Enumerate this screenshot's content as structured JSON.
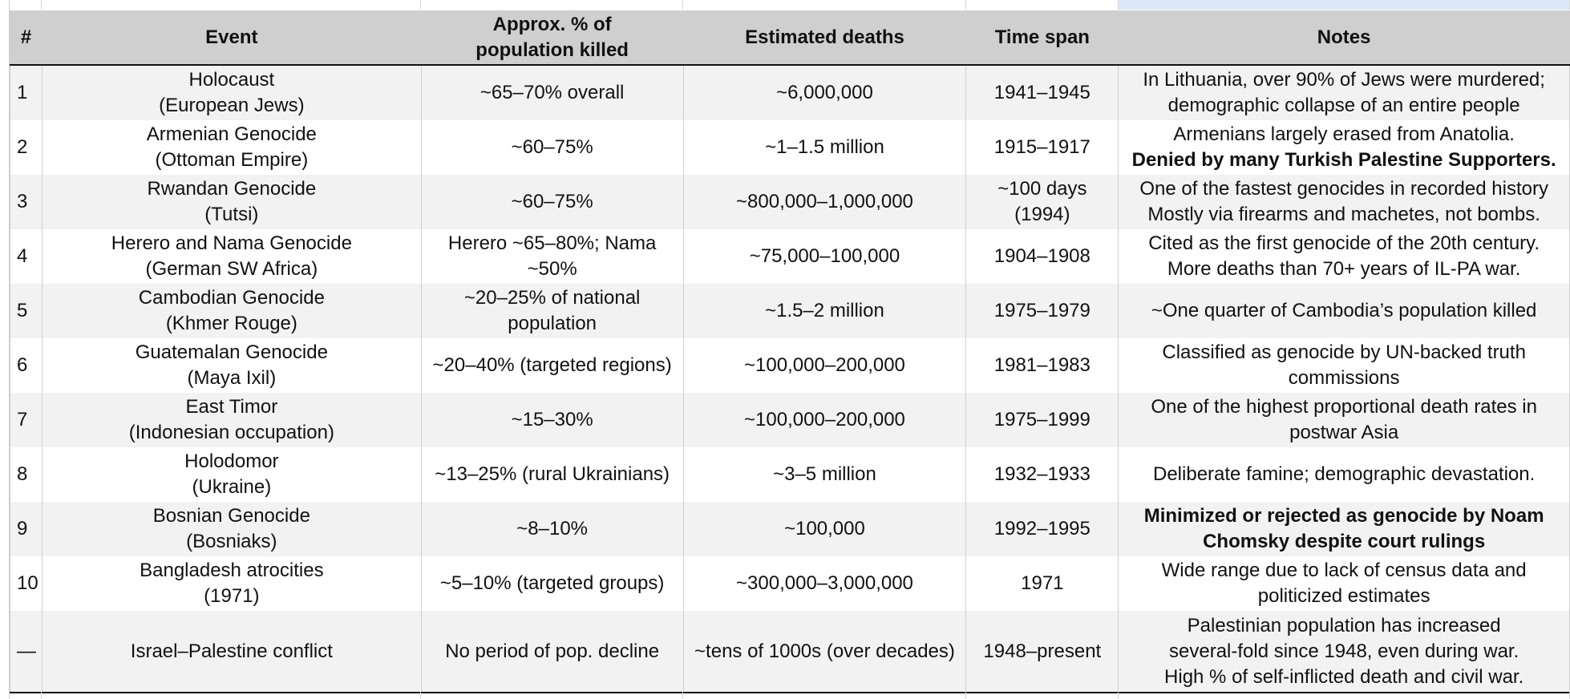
{
  "table": {
    "headers": {
      "num": "#",
      "event": "Event",
      "pct_line1": "Approx. % of",
      "pct_line2": "population killed",
      "deaths": "Estimated deaths",
      "span": "Time span",
      "notes": "Notes"
    },
    "rows": [
      {
        "num": "1",
        "event1": "Holocaust",
        "event2": "(European Jews)",
        "pct1": "~65–70% overall",
        "pct2": "",
        "deaths": "~6,000,000",
        "span1": "1941–1945",
        "span2": "",
        "notes1": "In Lithuania, over 90% of Jews were murdered;",
        "notes2": "demographic collapse of an entire people"
      },
      {
        "num": "2",
        "event1": "Armenian Genocide",
        "event2": "(Ottoman Empire)",
        "pct1": "~60–75%",
        "pct2": "",
        "deaths": "~1–1.5 million",
        "span1": "1915–1917",
        "span2": "",
        "notes1": "Armenians largely erased from Anatolia.",
        "notes2": "Denied by many Turkish Palestine Supporters."
      },
      {
        "num": "3",
        "event1": "Rwandan Genocide",
        "event2": "(Tutsi)",
        "pct1": "~60–75%",
        "pct2": "",
        "deaths": "~800,000–1,000,000",
        "span1": "~100 days",
        "span2": "(1994)",
        "notes1": "One of the fastest genocides in recorded history",
        "notes2": "Mostly via firearms and machetes, not bombs."
      },
      {
        "num": "4",
        "event1": "Herero and Nama Genocide",
        "event2": "(German SW Africa)",
        "pct1": "Herero ~65–80%; Nama",
        "pct2": "~50%",
        "deaths": "~75,000–100,000",
        "span1": "1904–1908",
        "span2": "",
        "notes1": "Cited as the first genocide of the 20th century.",
        "notes2": "More deaths than 70+ years of IL-PA war."
      },
      {
        "num": "5",
        "event1": "Cambodian Genocide",
        "event2": "(Khmer Rouge)",
        "pct1": "~20–25% of national",
        "pct2": "population",
        "deaths": "~1.5–2 million",
        "span1": "1975–1979",
        "span2": "",
        "notes1": "~One quarter of Cambodia’s population killed",
        "notes2": ""
      },
      {
        "num": "6",
        "event1": "Guatemalan Genocide",
        "event2": "(Maya Ixil)",
        "pct1": "~20–40% (targeted regions)",
        "pct2": "",
        "deaths": "~100,000–200,000",
        "span1": "1981–1983",
        "span2": "",
        "notes1": "Classified as genocide by UN-backed truth",
        "notes2": "commissions"
      },
      {
        "num": "7",
        "event1": "East Timor",
        "event2": "(Indonesian occupation)",
        "pct1": "~15–30%",
        "pct2": "",
        "deaths": "~100,000–200,000",
        "span1": "1975–1999",
        "span2": "",
        "notes1": "One of the highest proportional death rates in",
        "notes2": "postwar Asia"
      },
      {
        "num": "8",
        "event1": "Holodomor",
        "event2": "(Ukraine)",
        "pct1": "~13–25% (rural Ukrainians)",
        "pct2": "",
        "deaths": "~3–5 million",
        "span1": "1932–1933",
        "span2": "",
        "notes1": "Deliberate famine; demographic devastation.",
        "notes2": ""
      },
      {
        "num": "9",
        "event1": "Bosnian Genocide",
        "event2": "(Bosniaks)",
        "pct1": "~8–10%",
        "pct2": "",
        "deaths": "~100,000",
        "span1": "1992–1995",
        "span2": "",
        "notes1": "Minimized or rejected as genocide by Noam",
        "notes2": "Chomsky despite court rulings"
      },
      {
        "num": "10",
        "event1": "Bangladesh atrocities",
        "event2": "(1971)",
        "pct1": "~5–10% (targeted groups)",
        "pct2": "",
        "deaths": "~300,000–3,000,000",
        "span1": "1971",
        "span2": "",
        "notes1": "Wide range due to lack of census data and",
        "notes2": "politicized estimates"
      }
    ],
    "last_row": {
      "num": "—",
      "event": "Israel–Palestine conflict",
      "pct": "No period of pop. decline",
      "deaths": "~tens of 1000s (over decades)",
      "span": "1948–present",
      "notes1": "Palestinian population has increased",
      "notes2": "several-fold since 1948, even during war.",
      "notes3": "High % of self-inflicted death and civil war."
    }
  }
}
